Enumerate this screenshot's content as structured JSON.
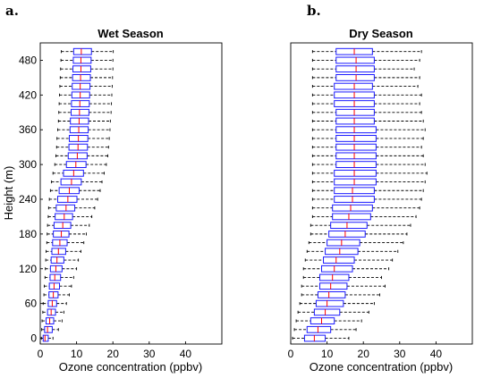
{
  "chart_data": [
    {
      "type": "boxplot",
      "panel_label": "a.",
      "title": "Wet Season",
      "xlabel": "Ozone concentration (ppbv)",
      "ylabel": "Height (m)",
      "xlim": [
        0,
        50
      ],
      "xticks": [
        "0",
        "10",
        "20",
        "30",
        "40"
      ],
      "ylim": [
        -10,
        510
      ],
      "yticks": [
        "0",
        "60",
        "120",
        "180",
        "240",
        "300",
        "360",
        "420",
        "480"
      ],
      "heights": [
        0,
        15,
        30,
        45,
        60,
        75,
        90,
        105,
        120,
        135,
        150,
        165,
        180,
        195,
        210,
        225,
        240,
        255,
        270,
        285,
        300,
        315,
        330,
        345,
        360,
        375,
        390,
        405,
        420,
        435,
        450,
        465,
        480,
        495
      ],
      "boxes": [
        {
          "min": 0.3,
          "q1": 0.8,
          "median": 1.3,
          "q3": 2.2,
          "max": 3.5
        },
        {
          "min": 0.4,
          "q1": 1.2,
          "median": 2.0,
          "q3": 3.3,
          "max": 5.0
        },
        {
          "min": 0.5,
          "q1": 1.6,
          "median": 2.6,
          "q3": 3.7,
          "max": 6.0
        },
        {
          "min": 0.7,
          "q1": 2.0,
          "median": 3.0,
          "q3": 4.2,
          "max": 6.5
        },
        {
          "min": 0.8,
          "q1": 2.2,
          "median": 3.3,
          "q3": 4.5,
          "max": 7.2
        },
        {
          "min": 1.0,
          "q1": 2.4,
          "median": 3.6,
          "q3": 4.9,
          "max": 8.0
        },
        {
          "min": 1.1,
          "q1": 2.5,
          "median": 3.8,
          "q3": 5.3,
          "max": 8.6
        },
        {
          "min": 1.3,
          "q1": 2.7,
          "median": 4.0,
          "q3": 5.6,
          "max": 9.2
        },
        {
          "min": 1.4,
          "q1": 2.8,
          "median": 4.3,
          "q3": 6.0,
          "max": 10.0
        },
        {
          "min": 1.5,
          "q1": 3.0,
          "median": 4.6,
          "q3": 6.5,
          "max": 10.5
        },
        {
          "min": 1.6,
          "q1": 3.2,
          "median": 5.0,
          "q3": 7.0,
          "max": 11.2
        },
        {
          "min": 1.8,
          "q1": 3.4,
          "median": 5.4,
          "q3": 7.4,
          "max": 12.0
        },
        {
          "min": 1.9,
          "q1": 3.6,
          "median": 5.8,
          "q3": 7.9,
          "max": 12.7
        },
        {
          "min": 2.0,
          "q1": 3.8,
          "median": 6.2,
          "q3": 8.4,
          "max": 13.5
        },
        {
          "min": 2.2,
          "q1": 4.1,
          "median": 6.6,
          "q3": 8.9,
          "max": 14.2
        },
        {
          "min": 2.3,
          "q1": 4.4,
          "median": 7.1,
          "q3": 9.5,
          "max": 15.0
        },
        {
          "min": 2.5,
          "q1": 4.8,
          "median": 7.6,
          "q3": 10.1,
          "max": 15.8
        },
        {
          "min": 2.8,
          "q1": 5.2,
          "median": 8.0,
          "q3": 10.7,
          "max": 16.5
        },
        {
          "min": 3.1,
          "q1": 5.7,
          "median": 8.6,
          "q3": 11.3,
          "max": 17.0
        },
        {
          "min": 3.5,
          "q1": 6.4,
          "median": 9.2,
          "q3": 11.9,
          "max": 17.6
        },
        {
          "min": 4.0,
          "q1": 7.2,
          "median": 9.8,
          "q3": 12.6,
          "max": 18.2
        },
        {
          "min": 4.3,
          "q1": 7.7,
          "median": 10.2,
          "q3": 12.9,
          "max": 18.6
        },
        {
          "min": 4.5,
          "q1": 7.9,
          "median": 10.4,
          "q3": 13.0,
          "max": 18.8
        },
        {
          "min": 4.6,
          "q1": 8.0,
          "median": 10.5,
          "q3": 13.1,
          "max": 19.0
        },
        {
          "min": 4.8,
          "q1": 8.2,
          "median": 10.6,
          "q3": 13.2,
          "max": 19.2
        },
        {
          "min": 5.0,
          "q1": 8.3,
          "median": 10.7,
          "q3": 13.3,
          "max": 19.3
        },
        {
          "min": 5.1,
          "q1": 8.5,
          "median": 10.8,
          "q3": 13.4,
          "max": 19.5
        },
        {
          "min": 5.2,
          "q1": 8.6,
          "median": 10.9,
          "q3": 13.5,
          "max": 19.6
        },
        {
          "min": 5.3,
          "q1": 8.7,
          "median": 11.0,
          "q3": 13.6,
          "max": 19.7
        },
        {
          "min": 5.4,
          "q1": 8.8,
          "median": 11.0,
          "q3": 13.7,
          "max": 19.8
        },
        {
          "min": 5.5,
          "q1": 8.9,
          "median": 11.1,
          "q3": 13.8,
          "max": 19.9
        },
        {
          "min": 5.6,
          "q1": 9.0,
          "median": 11.2,
          "q3": 13.9,
          "max": 20.0
        },
        {
          "min": 5.7,
          "q1": 9.1,
          "median": 11.2,
          "q3": 14.0,
          "max": 20.0
        },
        {
          "min": 5.8,
          "q1": 9.2,
          "median": 11.3,
          "q3": 14.1,
          "max": 20.1
        }
      ],
      "colors": {
        "box": "#1a1aff",
        "median": "#ff0000",
        "whisker": "#000000"
      }
    },
    {
      "type": "boxplot",
      "panel_label": "b.",
      "title": "Dry Season",
      "xlabel": "Ozone concentration (ppbv)",
      "ylabel": "",
      "xlim": [
        0,
        50
      ],
      "xticks": [
        "0",
        "10",
        "20",
        "30",
        "40"
      ],
      "ylim": [
        -10,
        510
      ],
      "yticks": [],
      "heights": [
        0,
        15,
        30,
        45,
        60,
        75,
        90,
        105,
        120,
        135,
        150,
        165,
        180,
        195,
        210,
        225,
        240,
        255,
        270,
        285,
        300,
        315,
        330,
        345,
        360,
        375,
        390,
        405,
        420,
        435,
        450,
        465,
        480,
        495
      ],
      "boxes": [
        {
          "min": 0.5,
          "q1": 3.8,
          "median": 6.5,
          "q3": 9.5,
          "max": 16.0
        },
        {
          "min": 1.0,
          "q1": 4.5,
          "median": 7.5,
          "q3": 11.0,
          "max": 18.0
        },
        {
          "min": 1.5,
          "q1": 5.5,
          "median": 8.5,
          "q3": 12.0,
          "max": 19.5
        },
        {
          "min": 2.0,
          "q1": 6.5,
          "median": 9.5,
          "q3": 13.5,
          "max": 21.5
        },
        {
          "min": 2.5,
          "q1": 7.0,
          "median": 10.0,
          "q3": 14.5,
          "max": 23.0
        },
        {
          "min": 3.0,
          "q1": 7.5,
          "median": 10.5,
          "q3": 15.0,
          "max": 24.5
        },
        {
          "min": 3.0,
          "q1": 8.0,
          "median": 11.0,
          "q3": 15.5,
          "max": 26.0
        },
        {
          "min": 3.5,
          "q1": 8.0,
          "median": 11.5,
          "q3": 16.0,
          "max": 25.0
        },
        {
          "min": 3.5,
          "q1": 8.5,
          "median": 12.0,
          "q3": 17.0,
          "max": 27.0
        },
        {
          "min": 4.0,
          "q1": 9.0,
          "median": 12.5,
          "q3": 17.5,
          "max": 28.0
        },
        {
          "min": 4.5,
          "q1": 9.5,
          "median": 13.5,
          "q3": 18.5,
          "max": 29.5
        },
        {
          "min": 5.0,
          "q1": 10.0,
          "median": 14.0,
          "q3": 19.0,
          "max": 31.0
        },
        {
          "min": 5.5,
          "q1": 10.5,
          "median": 15.0,
          "q3": 20.5,
          "max": 32.0
        },
        {
          "min": 5.5,
          "q1": 11.0,
          "median": 15.5,
          "q3": 21.0,
          "max": 33.0
        },
        {
          "min": 6.0,
          "q1": 11.5,
          "median": 16.0,
          "q3": 22.0,
          "max": 34.5
        },
        {
          "min": 6.0,
          "q1": 11.5,
          "median": 16.5,
          "q3": 22.5,
          "max": 35.5
        },
        {
          "min": 6.0,
          "q1": 12.0,
          "median": 17.0,
          "q3": 23.0,
          "max": 36.0
        },
        {
          "min": 6.0,
          "q1": 12.0,
          "median": 17.0,
          "q3": 23.0,
          "max": 36.5
        },
        {
          "min": 6.0,
          "q1": 12.0,
          "median": 17.5,
          "q3": 23.5,
          "max": 37.0
        },
        {
          "min": 6.0,
          "q1": 12.0,
          "median": 17.5,
          "q3": 23.5,
          "max": 37.5
        },
        {
          "min": 6.0,
          "q1": 12.5,
          "median": 17.5,
          "q3": 23.5,
          "max": 37.0
        },
        {
          "min": 6.0,
          "q1": 12.5,
          "median": 17.5,
          "q3": 23.5,
          "max": 36.5
        },
        {
          "min": 6.0,
          "q1": 12.5,
          "median": 17.5,
          "q3": 23.5,
          "max": 36.0
        },
        {
          "min": 6.0,
          "q1": 12.5,
          "median": 17.5,
          "q3": 23.5,
          "max": 36.5
        },
        {
          "min": 6.0,
          "q1": 12.5,
          "median": 17.5,
          "q3": 23.5,
          "max": 37.0
        },
        {
          "min": 6.0,
          "q1": 12.5,
          "median": 17.5,
          "q3": 23.0,
          "max": 36.5
        },
        {
          "min": 6.0,
          "q1": 12.5,
          "median": 17.5,
          "q3": 23.0,
          "max": 36.0
        },
        {
          "min": 6.0,
          "q1": 12.0,
          "median": 17.5,
          "q3": 23.0,
          "max": 35.5
        },
        {
          "min": 6.0,
          "q1": 12.0,
          "median": 17.5,
          "q3": 23.0,
          "max": 36.0
        },
        {
          "min": 6.0,
          "q1": 12.0,
          "median": 17.5,
          "q3": 22.5,
          "max": 35.0
        },
        {
          "min": 6.0,
          "q1": 12.5,
          "median": 18.0,
          "q3": 23.0,
          "max": 35.5
        },
        {
          "min": 6.0,
          "q1": 12.5,
          "median": 18.0,
          "q3": 23.0,
          "max": 34.0
        },
        {
          "min": 6.0,
          "q1": 12.5,
          "median": 18.0,
          "q3": 23.0,
          "max": 35.5
        },
        {
          "min": 6.0,
          "q1": 12.5,
          "median": 17.5,
          "q3": 22.5,
          "max": 36.0
        }
      ],
      "colors": {
        "box": "#1a1aff",
        "median": "#ff0000",
        "whisker": "#000000"
      }
    }
  ]
}
